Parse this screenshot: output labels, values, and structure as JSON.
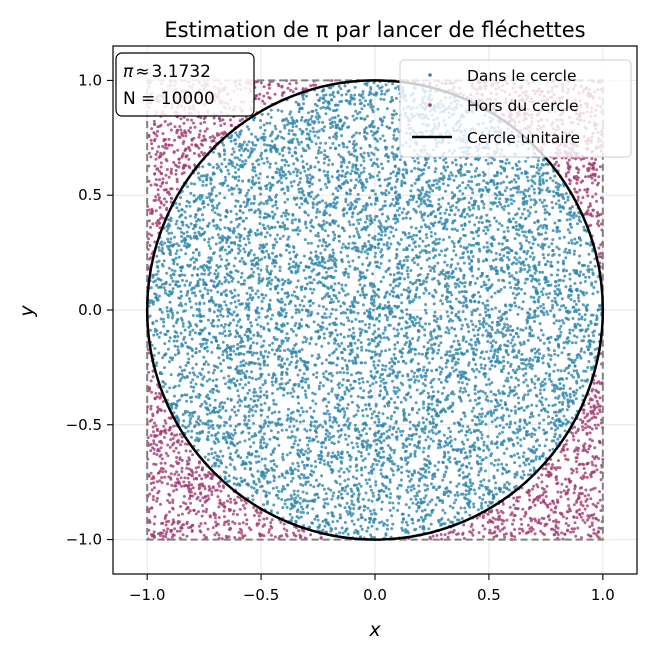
{
  "chart_data": {
    "type": "scatter",
    "title": "Estimation de π par lancer de fléchettes",
    "xlabel": "x",
    "ylabel": "y",
    "xlim": [
      -1.15,
      1.15
    ],
    "ylim": [
      -1.15,
      1.15
    ],
    "xticks": [
      -1.0,
      -0.5,
      0.0,
      0.5,
      1.0
    ],
    "yticks": [
      -1.0,
      -0.5,
      0.0,
      0.5,
      1.0
    ],
    "xtick_labels": [
      "−1.0",
      "−0.5",
      "0.0",
      "0.5",
      "1.0"
    ],
    "ytick_labels": [
      "−1.0",
      "−0.5",
      "0.0",
      "0.5",
      "1.0"
    ],
    "grid": true,
    "legend_position": "top-right",
    "n_samples": 10000,
    "pi_estimate": 3.1732,
    "stats_box": {
      "line1_symbol": "π",
      "line1_approx": "≈",
      "line1_value": "3.1732",
      "line2": "N = 10000"
    },
    "series": [
      {
        "name": "Dans le cercle",
        "kind": "points",
        "region": "inside unit circle",
        "color": "#2e86ab"
      },
      {
        "name": "Hors du cercle",
        "kind": "points",
        "region": "outside unit circle, inside square",
        "color": "#a23b72"
      },
      {
        "name": "Cercle unitaire",
        "kind": "line",
        "shape": "circle",
        "center": [
          0,
          0
        ],
        "radius": 1,
        "color": "#000000"
      }
    ],
    "square": {
      "x": [
        -1,
        1
      ],
      "y": [
        -1,
        1
      ],
      "style": "dashed",
      "color": "#808080"
    }
  }
}
